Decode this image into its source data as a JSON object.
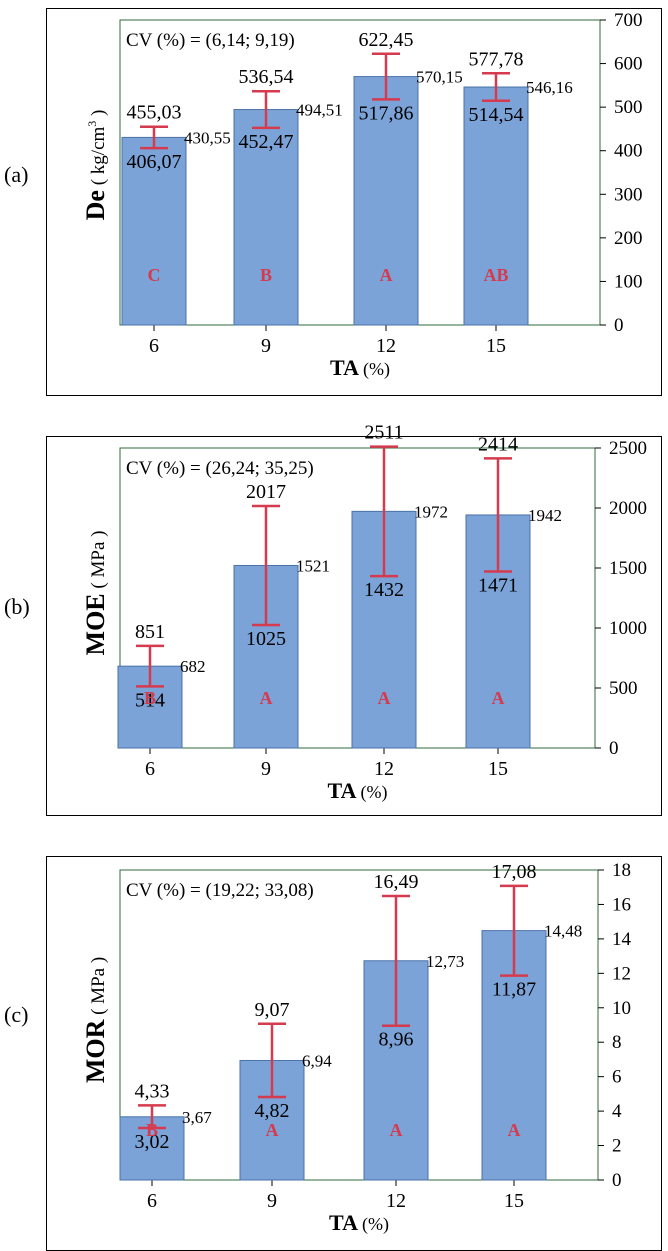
{
  "panels": [
    {
      "letter": "(a)"
    },
    {
      "letter": "(b)"
    },
    {
      "letter": "(c)"
    }
  ],
  "chart_data": [
    {
      "type": "bar",
      "cv": "CV (%) = (6,14; 9,19)",
      "ylabel_main": "De",
      "ylabel_unit": " ( kg/cm",
      "ylabel_sup": "3",
      "ylabel_close": " )",
      "xlabel_main": "TA",
      "xlabel_unit": "(%)",
      "categories": [
        "6",
        "9",
        "12",
        "15"
      ],
      "ylim": [
        0,
        700
      ],
      "yticks": [
        "0",
        "100",
        "200",
        "300",
        "400",
        "500",
        "600",
        "700"
      ],
      "means": [
        430.55,
        494.51,
        570.15,
        546.16
      ],
      "upper": [
        455.03,
        536.54,
        622.45,
        577.78
      ],
      "lower": [
        406.07,
        452.47,
        517.86,
        514.54
      ],
      "mean_labels": [
        "430,55",
        "494,51",
        "570,15",
        "546,16"
      ],
      "upper_labels": [
        "455,03",
        "536,54",
        "622,45",
        "577,78"
      ],
      "lower_labels": [
        "406,07",
        "452,47",
        "517,86",
        "514,54"
      ],
      "groups": [
        "C",
        "B",
        "A",
        "AB"
      ],
      "colors": {
        "bar": "#7ba3d7",
        "bar_edge": "#4a72a8",
        "error": "#d63a4e",
        "group": "#d63a4e"
      }
    },
    {
      "type": "bar",
      "cv": "CV (%) = (26,24; 35,25)",
      "ylabel_main": "MOE",
      "ylabel_unit": " ( MPa )",
      "xlabel_main": "TA",
      "xlabel_unit": "(%)",
      "categories": [
        "6",
        "9",
        "12",
        "15"
      ],
      "ylim": [
        0,
        2500
      ],
      "yticks": [
        "0",
        "500",
        "1000",
        "1500",
        "2000",
        "2500"
      ],
      "means": [
        682,
        1521,
        1972,
        1942
      ],
      "upper": [
        851,
        2017,
        2511,
        2414
      ],
      "lower": [
        514,
        1025,
        1432,
        1471
      ],
      "mean_labels": [
        "682",
        "1521",
        "1972",
        "1942"
      ],
      "upper_labels": [
        "851",
        "2017",
        "2511",
        "2414"
      ],
      "lower_labels": [
        "514",
        "1025",
        "1432",
        "1471"
      ],
      "groups": [
        "B",
        "A",
        "A",
        "A"
      ],
      "colors": {
        "bar": "#7ba3d7",
        "bar_edge": "#4a72a8",
        "error": "#d63a4e",
        "group": "#d63a4e"
      }
    },
    {
      "type": "bar",
      "cv": "CV (%) = (19,22; 33,08)",
      "ylabel_main": "MOR",
      "ylabel_unit": " ( MPa )",
      "xlabel_main": "TA",
      "xlabel_unit": "(%)",
      "categories": [
        "6",
        "9",
        "12",
        "15"
      ],
      "ylim": [
        0,
        18
      ],
      "yticks": [
        "0",
        "2",
        "4",
        "6",
        "8",
        "10",
        "12",
        "14",
        "16",
        "18"
      ],
      "means": [
        3.67,
        6.94,
        12.73,
        14.48
      ],
      "upper": [
        4.33,
        9.07,
        16.49,
        17.08
      ],
      "lower": [
        3.02,
        4.82,
        8.96,
        11.87
      ],
      "mean_labels": [
        "3,67",
        "6,94",
        "12,73",
        "14,48"
      ],
      "upper_labels": [
        "4,33",
        "9,07",
        "16,49",
        "17,08"
      ],
      "lower_labels": [
        "3,02",
        "4,82",
        "8,96",
        "11,87"
      ],
      "groups": [
        "B",
        "A",
        "A",
        "A"
      ],
      "colors": {
        "bar": "#7ba3d7",
        "bar_edge": "#4a72a8",
        "error": "#d63a4e",
        "group": "#d63a4e"
      }
    }
  ]
}
